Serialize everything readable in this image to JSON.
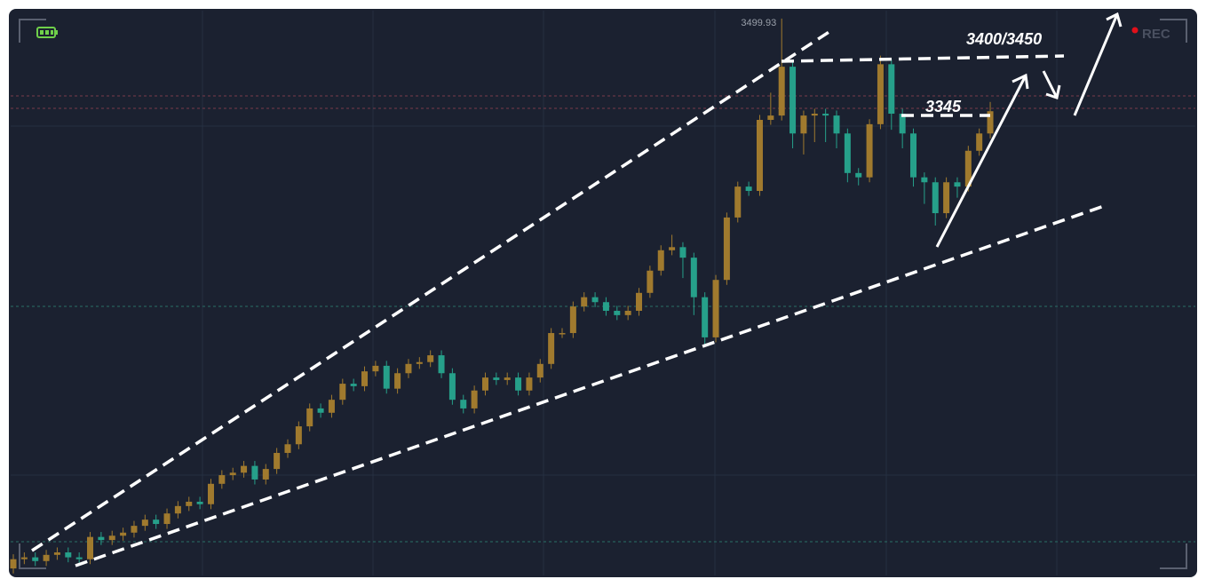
{
  "chart_data": {
    "type": "candlestick",
    "ylim": [
      2580,
      3530
    ],
    "up_color": "#a07a2e",
    "down_color": "#26a08a",
    "open": [
      2610,
      2625,
      2628,
      2622,
      2632,
      2636,
      2628,
      2625,
      2661,
      2656,
      2663,
      2668,
      2679,
      2689,
      2682,
      2699,
      2711,
      2718,
      2714,
      2747,
      2761,
      2765,
      2776,
      2754,
      2771,
      2797,
      2811,
      2840,
      2869,
      2862,
      2883,
      2909,
      2905,
      2929,
      2938,
      2901,
      2926,
      2941,
      2944,
      2955,
      2926,
      2883,
      2869,
      2898,
      2919,
      2915,
      2919,
      2898,
      2919,
      2941,
      2991,
      2991,
      3034,
      3049,
      3041,
      3027,
      3020,
      3027,
      3056,
      3092,
      3125,
      3130,
      3113,
      3049,
      2984,
      3077,
      3178,
      3228,
      3221,
      3336,
      3343,
      3422,
      3314,
      3343,
      3346,
      3343,
      3314,
      3250,
      3243,
      3329,
      3426,
      3346,
      3314,
      3243,
      3235,
      3185,
      3235,
      3228,
      3286,
      3314
    ],
    "high": [
      2633,
      2636,
      2636,
      2640,
      2644,
      2644,
      2636,
      2669,
      2669,
      2671,
      2676,
      2687,
      2697,
      2697,
      2707,
      2719,
      2726,
      2726,
      2755,
      2769,
      2773,
      2784,
      2784,
      2779,
      2805,
      2819,
      2848,
      2877,
      2877,
      2891,
      2917,
      2917,
      2937,
      2946,
      2946,
      2934,
      2949,
      2952,
      2963,
      2963,
      2934,
      2891,
      2906,
      2927,
      2927,
      2927,
      2927,
      2927,
      2949,
      2999,
      2999,
      3042,
      3057,
      3057,
      3049,
      3035,
      3035,
      3064,
      3100,
      3133,
      3150,
      3138,
      3121,
      3057,
      3085,
      3186,
      3236,
      3236,
      3344,
      3380,
      3499.93,
      3430,
      3351,
      3354,
      3354,
      3351,
      3322,
      3258,
      3337,
      3440,
      3434,
      3354,
      3322,
      3251,
      3243,
      3243,
      3243,
      3294,
      3322,
      3365
    ],
    "low": [
      2602,
      2617,
      2614,
      2614,
      2624,
      2620,
      2617,
      2617,
      2648,
      2648,
      2655,
      2660,
      2671,
      2674,
      2674,
      2691,
      2703,
      2706,
      2706,
      2739,
      2753,
      2757,
      2746,
      2746,
      2763,
      2789,
      2803,
      2832,
      2854,
      2854,
      2875,
      2897,
      2897,
      2921,
      2893,
      2893,
      2918,
      2933,
      2936,
      2918,
      2875,
      2861,
      2861,
      2890,
      2907,
      2907,
      2890,
      2890,
      2911,
      2933,
      2983,
      2983,
      3026,
      3033,
      3019,
      3012,
      3012,
      3019,
      3048,
      3084,
      3117,
      3080,
      3020,
      2970,
      2976,
      3069,
      3170,
      3213,
      3213,
      3328,
      3335,
      3290,
      3280,
      3300,
      3300,
      3290,
      3235,
      3230,
      3235,
      3321,
      3320,
      3290,
      3228,
      3200,
      3165,
      3177,
      3210,
      3220,
      3278,
      3306
    ],
    "close": [
      2625,
      2628,
      2622,
      2632,
      2636,
      2628,
      2625,
      2661,
      2656,
      2663,
      2668,
      2679,
      2689,
      2682,
      2699,
      2711,
      2718,
      2714,
      2747,
      2761,
      2765,
      2776,
      2754,
      2771,
      2797,
      2811,
      2840,
      2869,
      2862,
      2883,
      2909,
      2905,
      2929,
      2938,
      2901,
      2926,
      2941,
      2944,
      2955,
      2926,
      2883,
      2869,
      2898,
      2919,
      2915,
      2919,
      2898,
      2919,
      2941,
      2991,
      2991,
      3034,
      3049,
      3041,
      3027,
      3020,
      3027,
      3056,
      3092,
      3125,
      3130,
      3113,
      3049,
      2984,
      3077,
      3178,
      3228,
      3221,
      3336,
      3343,
      3422,
      3314,
      3343,
      3346,
      3343,
      3314,
      3250,
      3243,
      3329,
      3426,
      3346,
      3314,
      3243,
      3235,
      3185,
      3235,
      3228,
      3286,
      3314,
      3350
    ],
    "annotations": [
      "3400/3450",
      "3345"
    ],
    "recording_label": "REC"
  }
}
